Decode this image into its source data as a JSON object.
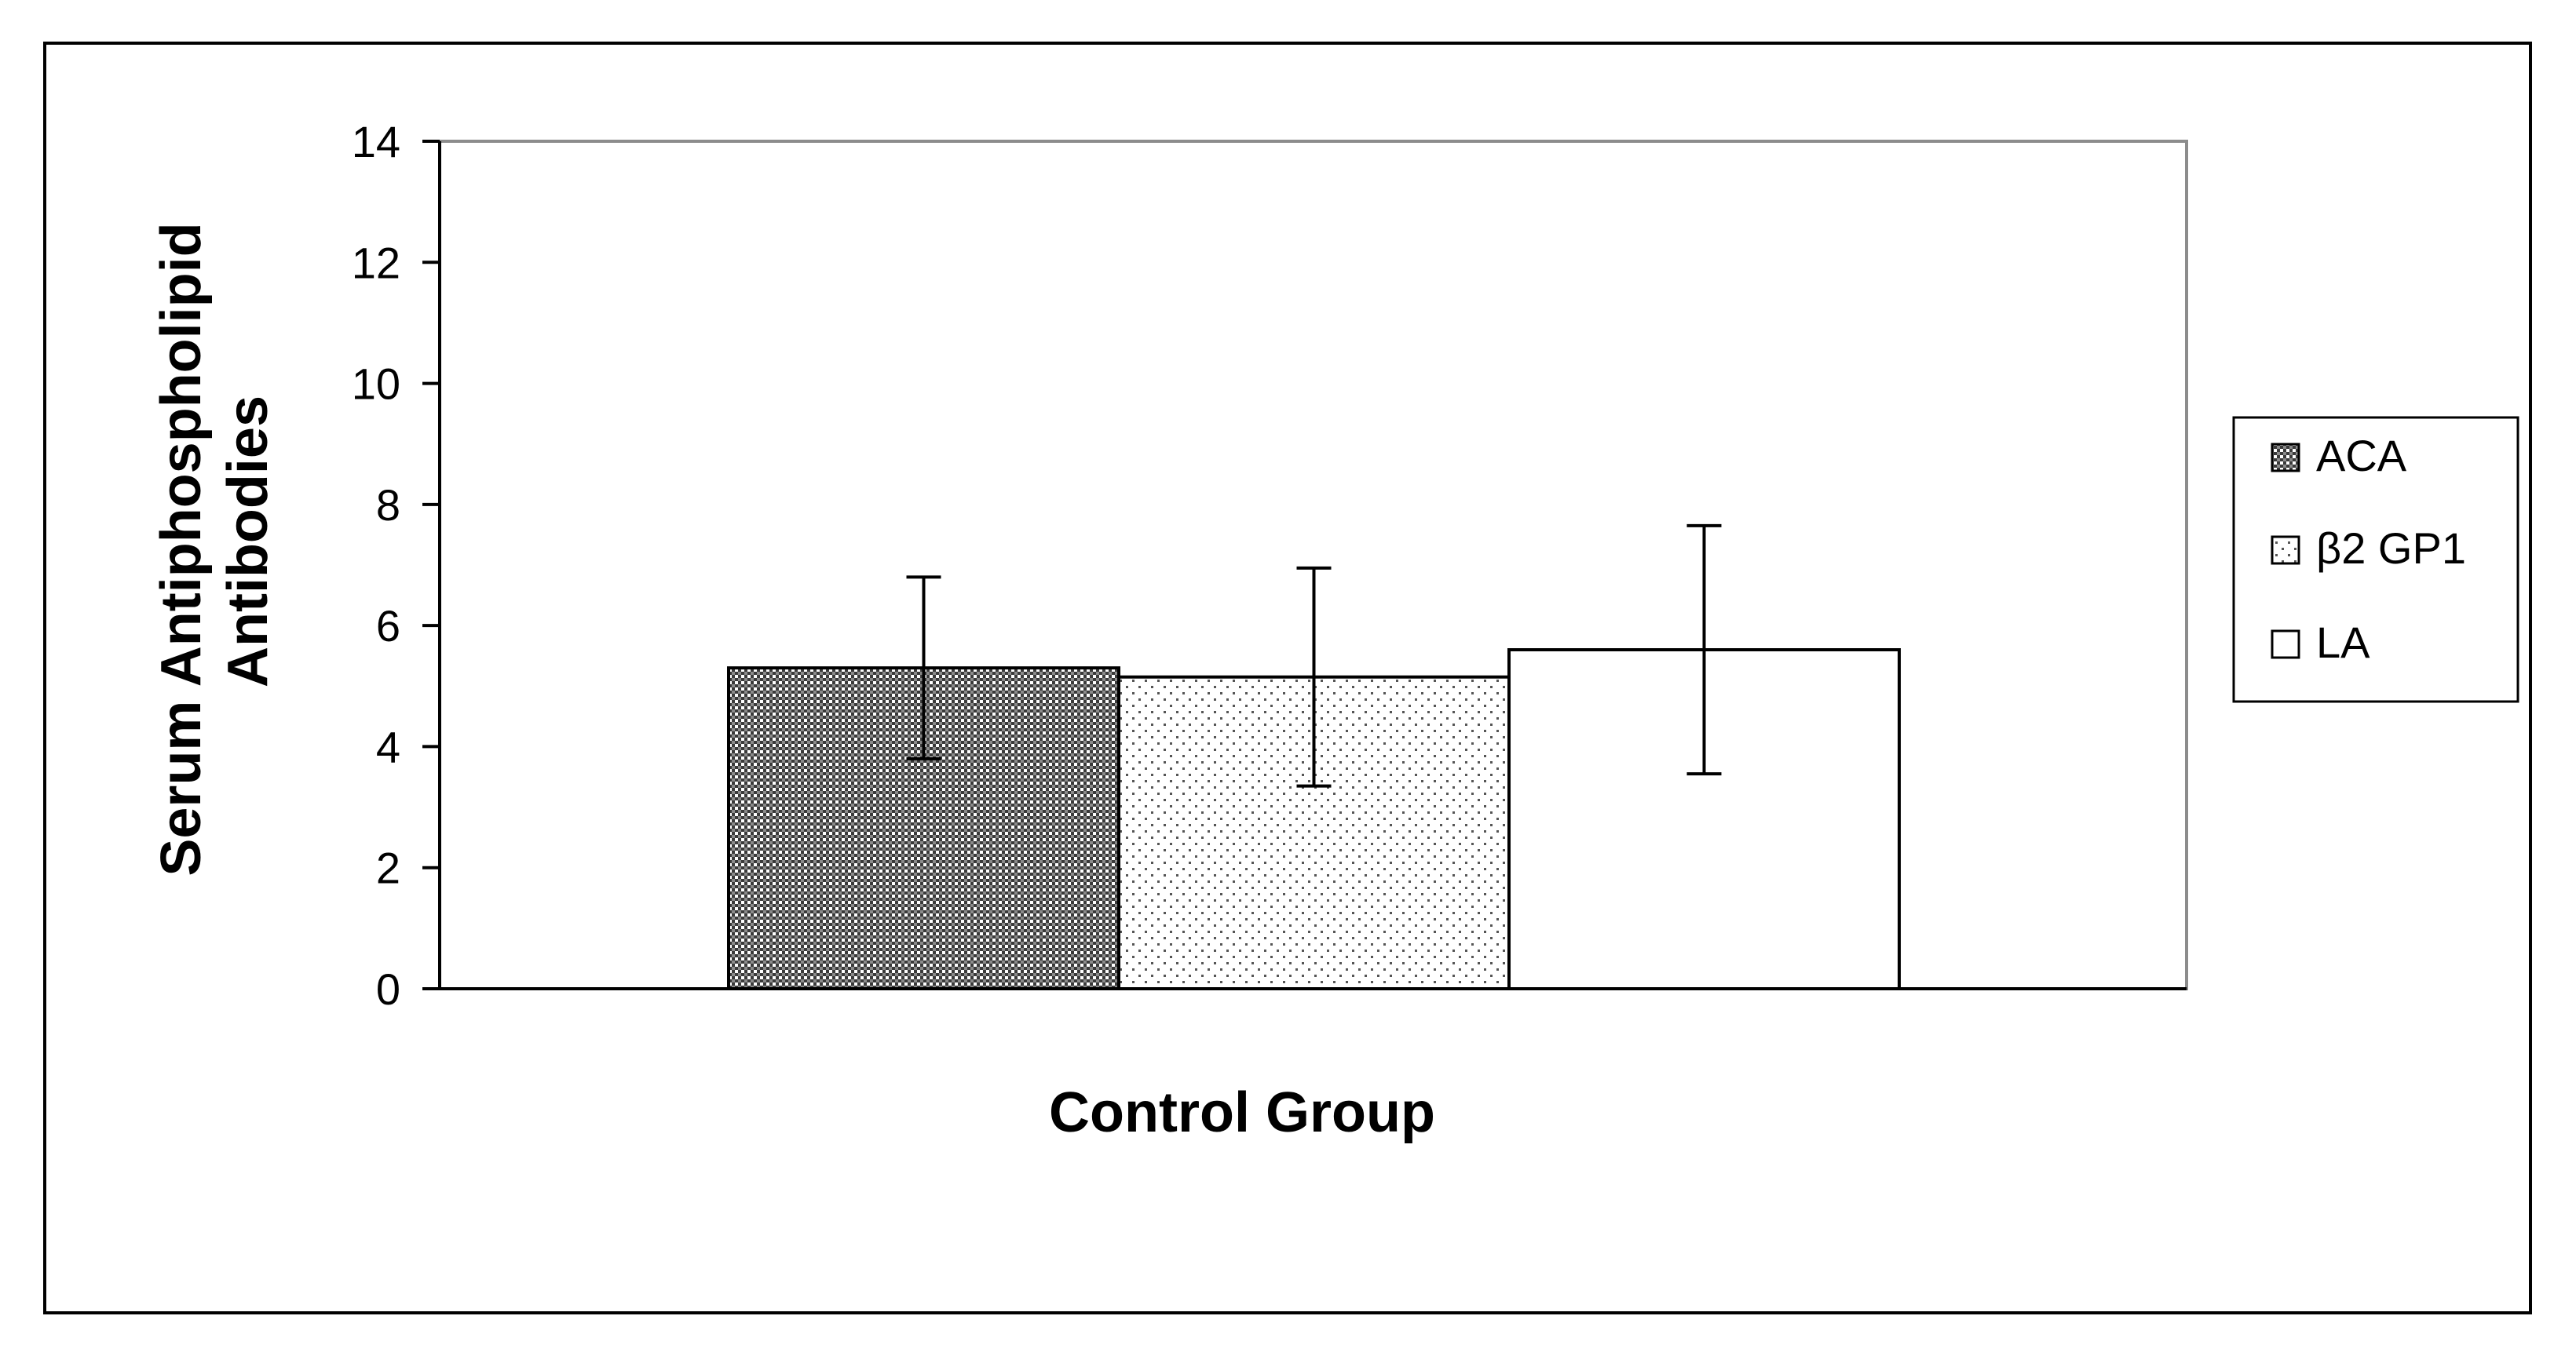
{
  "chart_data": {
    "type": "bar",
    "categories": [
      "Control Group"
    ],
    "xlabel": "Control Group",
    "ylabel_lines": [
      "Serum Antiphospholipid",
      "Antibodies"
    ],
    "ylim": [
      0,
      14
    ],
    "yticks": [
      0,
      2,
      4,
      6,
      8,
      10,
      12,
      14
    ],
    "grid": false,
    "legend_position": "right",
    "series": [
      {
        "name": "ACA",
        "values": [
          5.3
        ],
        "error": [
          1.5
        ],
        "pattern": "dense-dark"
      },
      {
        "name": "β2 GP1",
        "values": [
          5.15
        ],
        "error": [
          1.8
        ],
        "pattern": "sparse-dots"
      },
      {
        "name": "LA",
        "values": [
          5.6
        ],
        "error": [
          2.05
        ],
        "pattern": "white"
      }
    ]
  }
}
